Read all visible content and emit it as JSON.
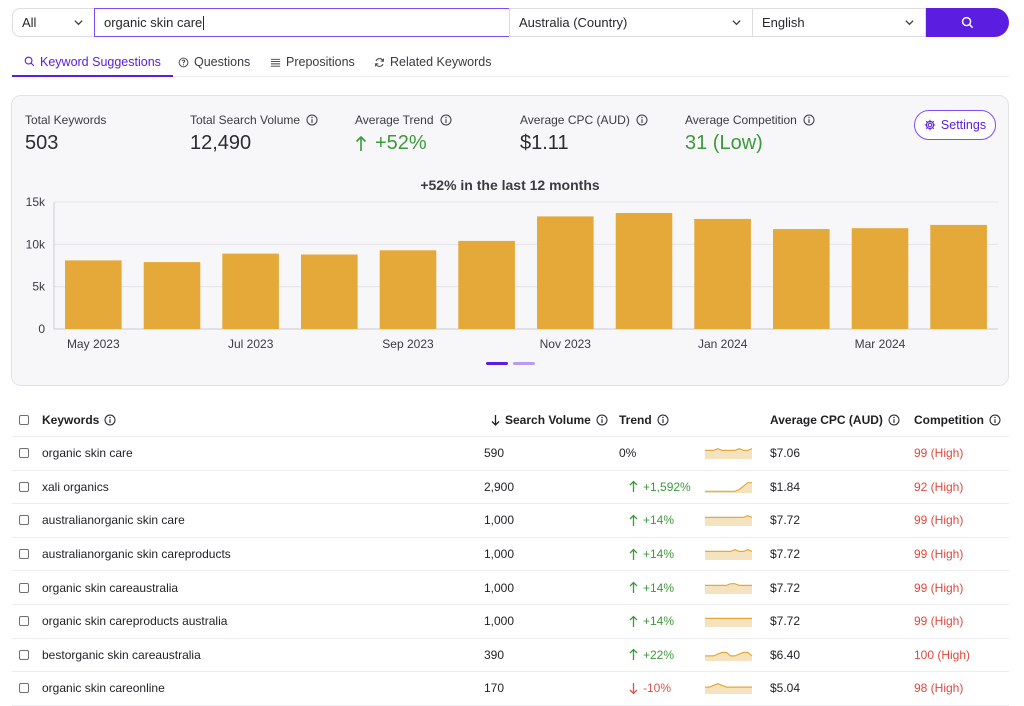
{
  "search": {
    "scope": "All",
    "query": "organic skin care",
    "country": "Australia (Country)",
    "language": "English"
  },
  "tabs": [
    {
      "label": "Keyword Suggestions",
      "icon": "search-icon",
      "active": true
    },
    {
      "label": "Questions",
      "icon": "question-circle-icon",
      "active": false
    },
    {
      "label": "Prepositions",
      "icon": "list-icon",
      "active": false
    },
    {
      "label": "Related Keywords",
      "icon": "refresh-icon",
      "active": false
    }
  ],
  "summary": {
    "total_keywords_label": "Total Keywords",
    "total_keywords": "503",
    "total_volume_label": "Total Search Volume",
    "total_volume": "12,490",
    "avg_trend_label": "Average Trend",
    "avg_trend": "+52%",
    "avg_cpc_label": "Average CPC (AUD)",
    "avg_cpc": "$1.11",
    "avg_comp_label": "Average Competition",
    "avg_comp": "31 (Low)",
    "settings_label": "Settings"
  },
  "chart_data": {
    "type": "bar",
    "title": "+52% in the last 12 months",
    "categories": [
      "May 2023",
      "Jun 2023",
      "Jul 2023",
      "Aug 2023",
      "Sep 2023",
      "Oct 2023",
      "Nov 2023",
      "Dec 2023",
      "Jan 2024",
      "Feb 2024",
      "Mar 2024",
      "Apr 2024"
    ],
    "x_tick_labels": [
      "May 2023",
      "",
      "Jul 2023",
      "",
      "Sep 2023",
      "",
      "Nov 2023",
      "",
      "Jan 2024",
      "",
      "Mar 2024",
      ""
    ],
    "values": [
      8100,
      7900,
      8900,
      8800,
      9300,
      10400,
      13300,
      13700,
      13000,
      11800,
      11900,
      12300
    ],
    "y_ticks": [
      "0",
      "5k",
      "10k",
      "15k"
    ],
    "ylim": [
      0,
      15000
    ],
    "bar_color": "#e5a93a",
    "grid": true
  },
  "table": {
    "headers": {
      "keywords": "Keywords",
      "volume": "Search Volume",
      "trend": "Trend",
      "cpc": "Average CPC (AUD)",
      "competition": "Competition"
    },
    "rows": [
      {
        "keyword": [
          [
            "n",
            "organic skin care"
          ]
        ],
        "volume": "590",
        "trend": "0%",
        "trend_dir": "flat",
        "spark": [
          5,
          5,
          5,
          6,
          5,
          5,
          5,
          5,
          6,
          5,
          5,
          6
        ],
        "cpc": "$7.06",
        "competition": "99 (High)"
      },
      {
        "keyword": [
          [
            "b",
            "xali organics"
          ]
        ],
        "volume": "2,900",
        "trend": "+1,592%",
        "trend_dir": "up",
        "spark": [
          1,
          1,
          1,
          1,
          1,
          1,
          1,
          1,
          2,
          4,
          6,
          6
        ],
        "cpc": "$1.84",
        "competition": "92 (High)"
      },
      {
        "keyword": [
          [
            "b",
            "australian"
          ],
          [
            "n",
            " organic skin care"
          ]
        ],
        "volume": "1,000",
        "trend": "+14%",
        "trend_dir": "up",
        "spark": [
          5,
          5,
          5,
          5,
          5,
          5,
          5,
          5,
          5,
          5,
          6,
          5
        ],
        "cpc": "$7.72",
        "competition": "99 (High)"
      },
      {
        "keyword": [
          [
            "b",
            "australian"
          ],
          [
            "n",
            " organic skin care "
          ],
          [
            "b",
            "products"
          ]
        ],
        "volume": "1,000",
        "trend": "+14%",
        "trend_dir": "up",
        "spark": [
          5,
          5,
          5,
          5,
          5,
          5,
          5,
          6,
          5,
          5,
          6,
          5
        ],
        "cpc": "$7.72",
        "competition": "99 (High)"
      },
      {
        "keyword": [
          [
            "n",
            "organic skin care "
          ],
          [
            "b",
            "australia"
          ]
        ],
        "volume": "1,000",
        "trend": "+14%",
        "trend_dir": "up",
        "spark": [
          5,
          5,
          5,
          5,
          5,
          5,
          6,
          6,
          5,
          5,
          5,
          5
        ],
        "cpc": "$7.72",
        "competition": "99 (High)"
      },
      {
        "keyword": [
          [
            "n",
            "organic skin care "
          ],
          [
            "b",
            "products australia"
          ]
        ],
        "volume": "1,000",
        "trend": "+14%",
        "trend_dir": "up",
        "spark": [
          5,
          5,
          5,
          5,
          5,
          5,
          5,
          5,
          5,
          5,
          5,
          5
        ],
        "cpc": "$7.72",
        "competition": "99 (High)"
      },
      {
        "keyword": [
          [
            "b",
            "best"
          ],
          [
            "n",
            " organic skin care "
          ],
          [
            "b",
            "australia"
          ]
        ],
        "volume": "390",
        "trend": "+22%",
        "trend_dir": "up",
        "spark": [
          3,
          3,
          3,
          4,
          5,
          5,
          3,
          3,
          4,
          5,
          5,
          3
        ],
        "cpc": "$6.40",
        "competition": "100 (High)"
      },
      {
        "keyword": [
          [
            "n",
            "organic skin care "
          ],
          [
            "b",
            "online"
          ]
        ],
        "volume": "170",
        "trend": "-10%",
        "trend_dir": "down",
        "spark": [
          4,
          4,
          5,
          6,
          5,
          4,
          4,
          4,
          4,
          4,
          4,
          4
        ],
        "cpc": "$5.04",
        "competition": "98 (High)"
      }
    ]
  },
  "colors": {
    "accent": "#5b1ee0",
    "bar": "#e5a93a",
    "green": "#3c9a3a",
    "red": "#e0493d"
  }
}
